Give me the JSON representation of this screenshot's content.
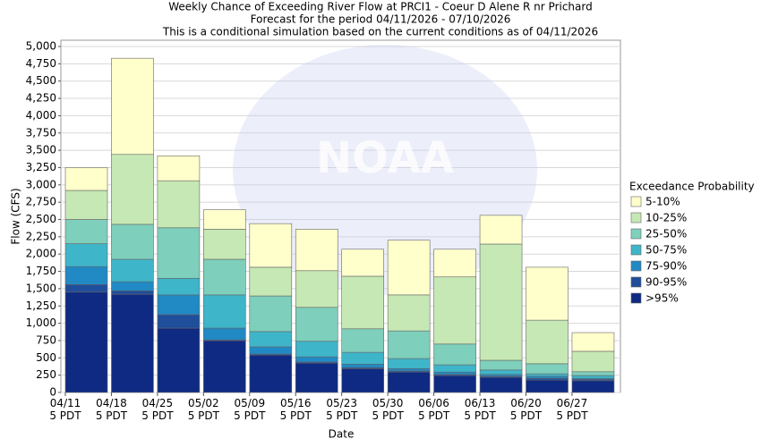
{
  "chart_data": {
    "type": "stacked_bar",
    "title": [
      "Weekly Chance of Exceeding River Flow at PRCI1 - Coeur D Alene R nr Prichard",
      "Forecast for the period 04/11/2026 - 07/10/2026",
      "This is a conditional simulation based on the current conditions as of 04/11/2026"
    ],
    "watermark": "NOAA",
    "x_label": "Date",
    "y_label": "Flow (CFS)",
    "legend_title": "Exceedance Probability",
    "legend_position": "right",
    "grid": true,
    "categories": [
      "04/11 5 PDT",
      "04/18 5 PDT",
      "04/25 5 PDT",
      "05/02 5 PDT",
      "05/09 5 PDT",
      "05/16 5 PDT",
      "05/23 5 PDT",
      "05/30 5 PDT",
      "06/06 5 PDT",
      "06/13 5 PDT",
      "06/20 5 PDT",
      "06/27 5 PDT"
    ],
    "series": [
      {
        "name": ">95%",
        "color": "#0f2a82",
        "values": [
          1450,
          1420,
          930,
          750,
          540,
          425,
          345,
          295,
          245,
          220,
          180,
          170
        ]
      },
      {
        "name": "90-95%",
        "color": "#1f4e9a",
        "values": [
          110,
          50,
          195,
          10,
          15,
          15,
          15,
          15,
          15,
          15,
          25,
          20
        ]
      },
      {
        "name": "75-90%",
        "color": "#2189c4",
        "values": [
          260,
          130,
          285,
          170,
          105,
          75,
          50,
          35,
          35,
          25,
          30,
          15
        ]
      },
      {
        "name": "50-75%",
        "color": "#3fb5c9",
        "values": [
          330,
          325,
          240,
          480,
          220,
          225,
          170,
          145,
          105,
          65,
          35,
          40
        ]
      },
      {
        "name": "25-50%",
        "color": "#7ecfbb",
        "values": [
          350,
          505,
          730,
          515,
          515,
          490,
          340,
          400,
          300,
          140,
          145,
          55
        ]
      },
      {
        "name": "10-25%",
        "color": "#c6e8b4",
        "values": [
          420,
          1010,
          680,
          435,
          415,
          530,
          760,
          520,
          970,
          1680,
          630,
          295
        ]
      },
      {
        "name": "5-10%",
        "color": "#ffffcc",
        "values": [
          330,
          1390,
          360,
          280,
          630,
          600,
          390,
          790,
          400,
          415,
          765,
          270
        ]
      }
    ],
    "ylim": [
      0,
      5000
    ],
    "yticks": [
      0,
      250,
      500,
      750,
      {
        "value": 1000,
        "label": "1,000"
      },
      {
        "value": 1250,
        "label": "1,250"
      },
      {
        "value": 1500,
        "label": "1,500"
      },
      {
        "value": 1750,
        "label": "1,750"
      },
      {
        "value": 2000,
        "label": "2,000"
      },
      {
        "value": 2250,
        "label": "2,250"
      },
      {
        "value": 2500,
        "label": "2,500"
      },
      {
        "value": 2750,
        "label": "2,750"
      },
      {
        "value": 3000,
        "label": "3,000"
      },
      {
        "value": 3250,
        "label": "3,250"
      },
      {
        "value": 3500,
        "label": "3,500"
      },
      {
        "value": 3750,
        "label": "3,750"
      },
      {
        "value": 4000,
        "label": "4,000"
      },
      {
        "value": 4250,
        "label": "4,250"
      },
      {
        "value": 4500,
        "label": "4,500"
      },
      {
        "value": 4750,
        "label": "4,750"
      },
      {
        "value": 5000,
        "label": "5,000"
      }
    ]
  }
}
